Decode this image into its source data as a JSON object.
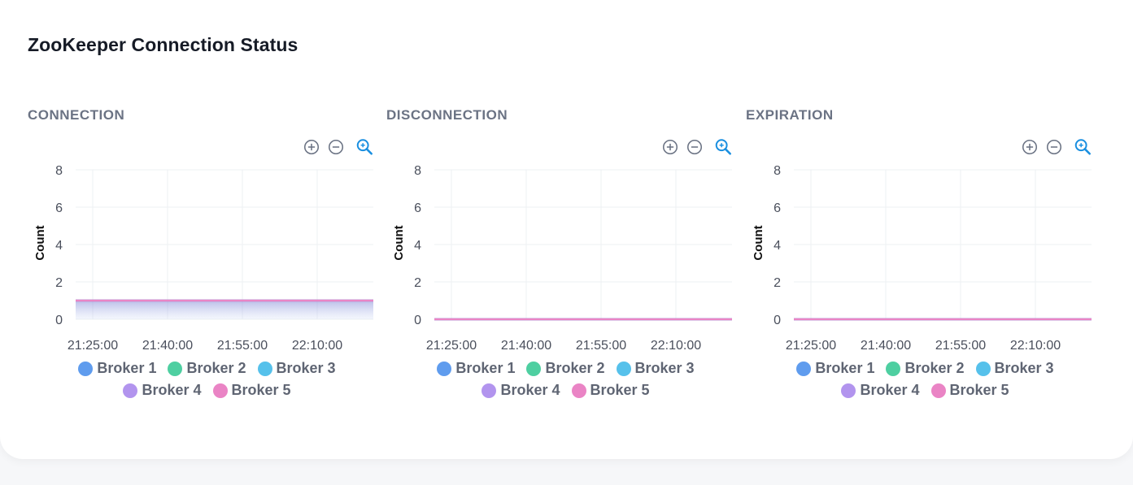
{
  "card": {
    "title": "ZooKeeper Connection Status"
  },
  "colors": {
    "broker1": "#5f9cee",
    "broker2": "#4ecfa1",
    "broker3": "#56c1eb",
    "broker4": "#b294ee",
    "broker5": "#ea84c5",
    "zoom_active": "#1a8fe0",
    "tool_gray": "#6b7384"
  },
  "toolbar": {
    "zoom_in_icon": "plus-circle-icon",
    "zoom_out_icon": "minus-circle-icon",
    "zoom_icon": "magnifier-zoom-icon"
  },
  "chart_data": [
    {
      "type": "area",
      "title": "CONNECTION",
      "ylabel": "Count",
      "xlabel": "",
      "ylim": [
        0,
        8
      ],
      "yticks": [
        "0",
        "2",
        "4",
        "6",
        "8"
      ],
      "x": [
        "21:25:00",
        "21:40:00",
        "21:55:00",
        "22:10:00"
      ],
      "grid": true,
      "legend": "bottom",
      "series": [
        {
          "name": "Broker 1",
          "values": [
            1,
            1,
            1,
            1
          ]
        },
        {
          "name": "Broker 2",
          "values": [
            1,
            1,
            1,
            1
          ]
        },
        {
          "name": "Broker 3",
          "values": [
            1,
            1,
            1,
            1
          ]
        },
        {
          "name": "Broker 4",
          "values": [
            1,
            1,
            1,
            1
          ]
        },
        {
          "name": "Broker 5",
          "values": [
            1,
            1,
            1,
            1
          ]
        }
      ]
    },
    {
      "type": "area",
      "title": "DISCONNECTION",
      "ylabel": "Count",
      "xlabel": "",
      "ylim": [
        0,
        8
      ],
      "yticks": [
        "0",
        "2",
        "4",
        "6",
        "8"
      ],
      "x": [
        "21:25:00",
        "21:40:00",
        "21:55:00",
        "22:10:00"
      ],
      "grid": true,
      "legend": "bottom",
      "series": [
        {
          "name": "Broker 1",
          "values": [
            0,
            0,
            0,
            0
          ]
        },
        {
          "name": "Broker 2",
          "values": [
            0,
            0,
            0,
            0
          ]
        },
        {
          "name": "Broker 3",
          "values": [
            0,
            0,
            0,
            0
          ]
        },
        {
          "name": "Broker 4",
          "values": [
            0,
            0,
            0,
            0
          ]
        },
        {
          "name": "Broker 5",
          "values": [
            0,
            0,
            0,
            0
          ]
        }
      ]
    },
    {
      "type": "area",
      "title": "EXPIRATION",
      "ylabel": "Count",
      "xlabel": "",
      "ylim": [
        0,
        8
      ],
      "yticks": [
        "0",
        "2",
        "4",
        "6",
        "8"
      ],
      "x": [
        "21:25:00",
        "21:40:00",
        "21:55:00",
        "22:10:00"
      ],
      "grid": true,
      "legend": "bottom",
      "series": [
        {
          "name": "Broker 1",
          "values": [
            0,
            0,
            0,
            0
          ]
        },
        {
          "name": "Broker 2",
          "values": [
            0,
            0,
            0,
            0
          ]
        },
        {
          "name": "Broker 3",
          "values": [
            0,
            0,
            0,
            0
          ]
        },
        {
          "name": "Broker 4",
          "values": [
            0,
            0,
            0,
            0
          ]
        },
        {
          "name": "Broker 5",
          "values": [
            0,
            0,
            0,
            0
          ]
        }
      ]
    }
  ]
}
